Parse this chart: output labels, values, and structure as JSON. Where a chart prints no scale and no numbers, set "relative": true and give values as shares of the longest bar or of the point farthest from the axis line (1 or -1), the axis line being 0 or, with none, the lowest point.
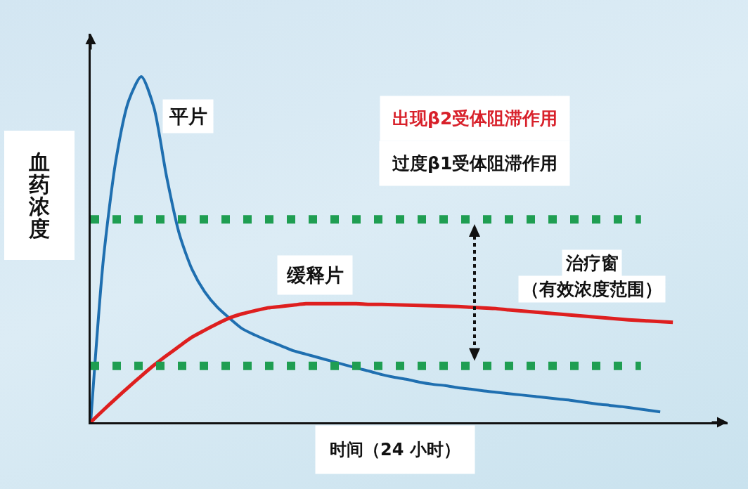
{
  "chart_data": {
    "type": "line",
    "relative": true,
    "xlabel": "时间（24 小时）",
    "ylabel": "血药浓度",
    "categories": [
      null,
      null,
      null,
      null,
      null,
      null,
      null,
      null,
      null,
      null,
      null,
      null,
      null,
      null,
      null,
      null,
      null,
      null,
      null,
      null,
      null,
      null,
      null,
      null,
      null,
      null,
      null,
      null,
      null,
      null,
      null,
      null,
      null,
      null,
      null,
      null,
      null,
      null,
      null,
      null,
      null,
      null,
      null,
      null,
      null,
      null,
      null
    ],
    "series": [
      {
        "name": "平片",
        "color": "#1f6fb0",
        "values": [
          0,
          0.47,
          0.76,
          0.93,
          1,
          0.91,
          0.71,
          0.545,
          0.443,
          0.378,
          0.333,
          0.3,
          0.27,
          0.252,
          0.236,
          0.222,
          0.207,
          0.197,
          0.187,
          0.177,
          0.167,
          0.157,
          0.148,
          0.138,
          0.13,
          0.124,
          0.116,
          0.11,
          0.106,
          0.1,
          0.096,
          0.091,
          0.087,
          0.083,
          0.079,
          0.075,
          0.071,
          0.067,
          0.063,
          0.058,
          0.053,
          0.049,
          0.045,
          0.04,
          0.035,
          0.03,
          null
        ]
      },
      {
        "name": "缓释片",
        "color": "#de1f1f",
        "values": [
          0,
          0.035,
          0.069,
          0.102,
          0.134,
          0.165,
          0.193,
          0.22,
          0.246,
          0.266,
          0.285,
          0.302,
          0.314,
          0.323,
          0.331,
          0.335,
          0.339,
          0.343,
          0.343,
          0.343,
          0.343,
          0.343,
          0.341,
          0.341,
          0.34,
          0.339,
          0.338,
          0.337,
          0.336,
          0.335,
          0.333,
          0.331,
          0.329,
          0.325,
          0.322,
          0.319,
          0.316,
          0.313,
          0.31,
          0.307,
          0.304,
          0.301,
          0.298,
          0.295,
          0.293,
          0.291,
          0.289
        ]
      }
    ],
    "ref_lines": [
      {
        "axis": "y",
        "value": 0.587,
        "color": "#1f9e52",
        "line_style": "dotted"
      },
      {
        "axis": "y",
        "value": 0.163,
        "color": "#1f9e52",
        "line_style": "dotted"
      }
    ],
    "annotations": [
      "出现β2受体阻滞作用",
      "过度β1受体阻滞作用",
      "治疗窗",
      "（有效浓度范围）"
    ]
  }
}
